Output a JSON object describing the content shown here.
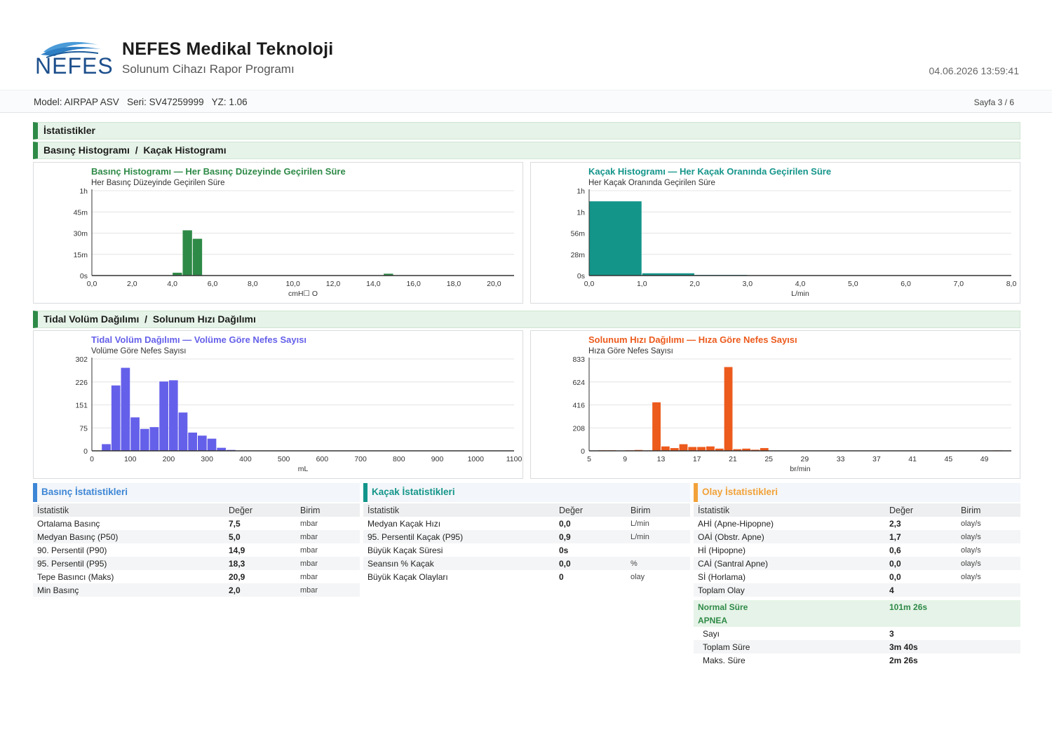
{
  "header": {
    "logo_text": "NEFES",
    "company": "NEFES Medikal Teknoloji",
    "subtitle": "Solunum Cihazı Rapor Programı",
    "datetime": "04.06.2026  13:59:41"
  },
  "infobar": {
    "device": "Model: AIRPAP ASV   Seri: SV47259999   YZ: 1.06",
    "page": "Sayfa 3 / 6"
  },
  "sections": {
    "stats": "İstatistikler",
    "hist1": "Basınç Histogramı  /  Kaçak Histogramı",
    "hist2": "Tidal Volüm Dağılımı  /  Solunum Hızı Dağılımı"
  },
  "colors": {
    "pressure": "#2e8a47",
    "leak": "#14958a",
    "tidal": "#6560ea",
    "resp": "#ec5a1c",
    "blue": "#3d86d6",
    "teal": "#14958a",
    "orange": "#f2a23a"
  },
  "chart_data": [
    {
      "type": "bar",
      "title": "Basınç Histogramı — Her Basınç Düzeyinde Geçirilen Süre",
      "subtitle": "Her Basınç Düzeyinde Geçirilen Süre",
      "xlabel": "cmH☐ O",
      "xlim": [
        0,
        21
      ],
      "x_ticks": [
        "0,0",
        "2,0",
        "4,0",
        "6,0",
        "8,0",
        "10,0",
        "12,0",
        "14,0",
        "16,0",
        "18,0",
        "20,0"
      ],
      "ylim": [
        0,
        60
      ],
      "y_ticks": [
        "0s",
        "15m",
        "30m",
        "45m",
        "1h"
      ],
      "bin_width": 0.5,
      "x": [
        4.0,
        4.5,
        5.0,
        14.5
      ],
      "values": [
        2,
        32,
        26,
        1.3
      ]
    },
    {
      "type": "bar",
      "title": "Kaçak Histogramı — Her Kaçak Oranında Geçirilen Süre",
      "subtitle": "Her Kaçak Oranında Geçirilen Süre",
      "xlabel": "L/min",
      "xlim": [
        0,
        8
      ],
      "x_ticks": [
        "0,0",
        "1,0",
        "2,0",
        "3,0",
        "4,0",
        "5,0",
        "6,0",
        "7,0",
        "8,0"
      ],
      "ylim": [
        0,
        112
      ],
      "y_ticks": [
        "0s",
        "28m",
        "56m",
        "1h",
        "1h"
      ],
      "bin_width": 1,
      "x": [
        0,
        1,
        2
      ],
      "values": [
        98,
        3,
        0.8
      ]
    },
    {
      "type": "bar",
      "title": "Tidal Volüm Dağılımı — Volüme Göre Nefes Sayısı",
      "subtitle": "Volüme Göre Nefes Sayısı",
      "xlabel": "mL",
      "xlim": [
        0,
        1100
      ],
      "x_ticks": [
        "0",
        "100",
        "200",
        "300",
        "400",
        "500",
        "600",
        "700",
        "800",
        "900",
        "1000",
        "1100"
      ],
      "ylim": [
        0,
        302
      ],
      "y_ticks": [
        "0",
        "75",
        "151",
        "226",
        "302"
      ],
      "bin_width": 25,
      "x": [
        25,
        50,
        75,
        100,
        125,
        150,
        175,
        200,
        225,
        250,
        275,
        300,
        325,
        350,
        375,
        400,
        425,
        800,
        1050
      ],
      "values": [
        22,
        215,
        273,
        110,
        72,
        78,
        228,
        232,
        126,
        60,
        50,
        40,
        10,
        3,
        1,
        1,
        1,
        1,
        1
      ]
    },
    {
      "type": "bar",
      "title": "Solunum Hızı Dağılımı — Hıza Göre Nefes Sayısı",
      "subtitle": "Hıza Göre Nefes Sayısı",
      "xlabel": "br/min",
      "xlim": [
        5,
        52
      ],
      "x_ticks": [
        "5",
        "9",
        "13",
        "17",
        "21",
        "25",
        "29",
        "33",
        "37",
        "41",
        "45",
        "49"
      ],
      "ylim": [
        0,
        833
      ],
      "y_ticks": [
        "0",
        "208",
        "416",
        "624",
        "833"
      ],
      "bin_width": 1,
      "x": [
        5,
        6,
        7,
        8,
        9,
        10,
        11,
        12,
        13,
        14,
        15,
        16,
        17,
        18,
        19,
        20,
        21,
        22,
        23,
        24,
        25,
        26,
        27,
        28,
        29,
        30,
        31,
        32,
        33,
        34,
        35,
        36,
        37,
        38,
        39,
        40,
        41,
        42,
        43,
        44,
        45,
        46,
        47,
        48,
        49,
        50
      ],
      "values": [
        2,
        5,
        5,
        3,
        5,
        8,
        4,
        440,
        40,
        25,
        60,
        35,
        35,
        40,
        20,
        760,
        15,
        20,
        10,
        25,
        3,
        3,
        3,
        3,
        3,
        3,
        3,
        2,
        2,
        2,
        2,
        2,
        2,
        2,
        3,
        2,
        2,
        2,
        2,
        2,
        2,
        2,
        2,
        2,
        2,
        4
      ]
    }
  ],
  "stats": {
    "pressure": {
      "title": "Basınç İstatistikleri",
      "headers": [
        "İstatistik",
        "Değer",
        "Birim"
      ],
      "rows": [
        [
          "Ortalama Basınç",
          "7,5",
          "mbar"
        ],
        [
          "Medyan Basınç (P50)",
          "5,0",
          "mbar"
        ],
        [
          "90. Persentil (P90)",
          "14,9",
          "mbar"
        ],
        [
          "95. Persentil (P95)",
          "18,3",
          "mbar"
        ],
        [
          "Tepe Basıncı (Maks)",
          "20,9",
          "mbar"
        ],
        [
          "Min Basınç",
          "2,0",
          "mbar"
        ]
      ]
    },
    "leak": {
      "title": "Kaçak İstatistikleri",
      "headers": [
        "İstatistik",
        "Değer",
        "Birim"
      ],
      "rows": [
        [
          "Medyan Kaçak Hızı",
          "0,0",
          "L/min"
        ],
        [
          "95. Persentil Kaçak (P95)",
          "0,9",
          "L/min"
        ],
        [
          "Büyük Kaçak Süresi",
          "0s",
          ""
        ],
        [
          "Seansın % Kaçak",
          "0,0",
          "%"
        ],
        [
          "Büyük Kaçak Olayları",
          "0",
          "olay"
        ]
      ]
    },
    "events": {
      "title": "Olay İstatistikleri",
      "headers": [
        "İstatistik",
        "Değer",
        "Birim"
      ],
      "rows": [
        [
          "AHİ  (Apne-Hipopne)",
          "2,3",
          "olay/s"
        ],
        [
          "OAİ  (Obstr. Apne)",
          "1,7",
          "olay/s"
        ],
        [
          "Hİ   (Hipopne)",
          "0,6",
          "olay/s"
        ],
        [
          "CAİ  (Santral Apne)",
          "0,0",
          "olay/s"
        ],
        [
          "Sİ   (Horlama)",
          "0,0",
          "olay/s"
        ],
        [
          "Toplam Olay",
          "4",
          ""
        ]
      ],
      "normal_label": "Normal Süre",
      "normal_value": "101m 26s",
      "apnea_label": "APNEA",
      "apnea_rows": [
        [
          "Sayı",
          "3"
        ],
        [
          "Toplam Süre",
          "3m 40s"
        ],
        [
          "Maks. Süre",
          "2m 26s"
        ]
      ]
    }
  }
}
